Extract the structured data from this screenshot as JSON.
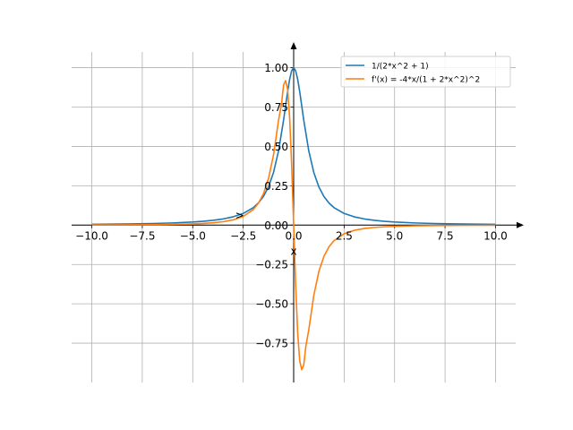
{
  "chart_data": {
    "type": "line",
    "xlabel": "x",
    "ylabel": "",
    "xlim": [
      -11,
      11
    ],
    "ylim": [
      -1.0,
      1.1
    ],
    "grid": true,
    "legend_position": "top-right",
    "x_ticks": [
      -10.0,
      -7.5,
      -5.0,
      -2.5,
      0.0,
      2.5,
      5.0,
      7.5,
      10.0
    ],
    "x_tick_labels": [
      "−10.0",
      "−7.5",
      "−5.0",
      "−2.5",
      "0.0",
      "2.5",
      "5.0",
      "7.5",
      "10.0"
    ],
    "y_ticks": [
      -0.75,
      -0.5,
      -0.25,
      0.0,
      0.25,
      0.5,
      0.75,
      1.0
    ],
    "y_tick_labels": [
      "−0.75",
      "−0.50",
      "−0.25",
      "0.00",
      "0.25",
      "0.50",
      "0.75",
      "1.00"
    ],
    "annotation": ">",
    "series": [
      {
        "name": "1/(2*x^2 + 1)",
        "color": "#1f77b4",
        "x": [
          -10,
          -9,
          -8,
          -7,
          -6,
          -5,
          -4.5,
          -4,
          -3.5,
          -3,
          -2.5,
          -2,
          -1.75,
          -1.5,
          -1.25,
          -1,
          -0.75,
          -0.5,
          -0.4,
          -0.3,
          -0.2,
          -0.1,
          0,
          0.1,
          0.2,
          0.3,
          0.4,
          0.5,
          0.75,
          1,
          1.25,
          1.5,
          1.75,
          2,
          2.5,
          3,
          3.5,
          4,
          4.5,
          5,
          6,
          7,
          8,
          9,
          10
        ],
        "y": [
          0.005,
          0.0061,
          0.0078,
          0.0101,
          0.0137,
          0.0196,
          0.0241,
          0.0303,
          0.0392,
          0.0526,
          0.0741,
          0.1111,
          0.1404,
          0.1818,
          0.2424,
          0.3333,
          0.4706,
          0.6667,
          0.7576,
          0.8475,
          0.9259,
          0.9804,
          1.0,
          0.9804,
          0.9259,
          0.8475,
          0.7576,
          0.6667,
          0.4706,
          0.3333,
          0.2424,
          0.1818,
          0.1404,
          0.1111,
          0.0741,
          0.0526,
          0.0392,
          0.0303,
          0.0241,
          0.0196,
          0.0137,
          0.0101,
          0.0078,
          0.0061,
          0.005
        ]
      },
      {
        "name": "f'(x) = -4*x/(1 + 2*x^2)^2",
        "color": "#ff7f0e",
        "x": [
          -10,
          -9,
          -8,
          -7,
          -6,
          -5,
          -4.5,
          -4,
          -3.5,
          -3,
          -2.5,
          -2,
          -1.75,
          -1.5,
          -1.25,
          -1,
          -0.75,
          -0.6,
          -0.5,
          -0.4,
          -0.3,
          -0.2,
          -0.1,
          0,
          0.1,
          0.2,
          0.3,
          0.4,
          0.5,
          0.6,
          0.75,
          1,
          1.25,
          1.5,
          1.75,
          2,
          2.5,
          3,
          3.5,
          4,
          4.5,
          5,
          6,
          7,
          8,
          9,
          10
        ],
        "y": [
          0.001,
          0.0013,
          0.0019,
          0.0029,
          0.0045,
          0.0077,
          0.0105,
          0.0147,
          0.0215,
          0.0332,
          0.0549,
          0.0988,
          0.138,
          0.1983,
          0.2938,
          0.4444,
          0.6644,
          0.7727,
          0.8889,
          0.9183,
          0.8618,
          0.6858,
          0.3845,
          0.0,
          -0.3845,
          -0.6858,
          -0.8618,
          -0.9183,
          -0.8889,
          -0.7727,
          -0.6644,
          -0.4444,
          -0.2938,
          -0.1983,
          -0.138,
          -0.0988,
          -0.0549,
          -0.0332,
          -0.0215,
          -0.0147,
          -0.0105,
          -0.0077,
          -0.0045,
          -0.0029,
          -0.0019,
          -0.0013,
          -0.001
        ]
      }
    ]
  }
}
